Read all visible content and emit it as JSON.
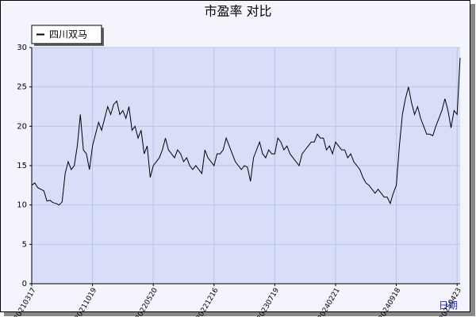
{
  "chart_data": {
    "type": "line",
    "title": "市盈率  对比",
    "x_label": "日期",
    "series": [
      {
        "name": "四川双马",
        "color": "#000000",
        "values": [
          12.5,
          12.8,
          12.2,
          12.0,
          11.8,
          10.5,
          10.6,
          10.3,
          10.2,
          10.0,
          10.4,
          14.0,
          15.5,
          14.5,
          15.0,
          17.5,
          21.5,
          17.0,
          16.5,
          14.5,
          17.5,
          19.0,
          20.5,
          19.5,
          21.0,
          22.5,
          21.5,
          22.8,
          23.2,
          21.5,
          22.0,
          21.0,
          22.5,
          19.5,
          20.0,
          18.5,
          19.5,
          16.5,
          17.5,
          13.5,
          15.0,
          15.5,
          16.0,
          17.0,
          18.5,
          17.0,
          16.5,
          16.0,
          17.0,
          16.5,
          15.5,
          16.0,
          15.0,
          14.5,
          15.0,
          14.5,
          14.0,
          17.0,
          16.0,
          15.5,
          15.0,
          16.5,
          16.5,
          17.0,
          18.5,
          17.5,
          16.5,
          15.5,
          15.0,
          14.5,
          15.0,
          14.8,
          13.0,
          16.0,
          17.0,
          18.0,
          16.5,
          16.0,
          17.0,
          16.5,
          16.5,
          18.5,
          18.0,
          17.0,
          17.5,
          16.5,
          16.0,
          15.5,
          15.0,
          16.5,
          17.0,
          17.5,
          18.0,
          18.0,
          19.0,
          18.5,
          18.5,
          17.0,
          17.5,
          16.5,
          18.0,
          17.5,
          17.0,
          17.0,
          16.0,
          16.5,
          15.5,
          15.0,
          14.5,
          13.5,
          12.8,
          12.5,
          12.0,
          11.5,
          12.0,
          11.5,
          11.0,
          11.0,
          10.2,
          11.5,
          12.5,
          17.5,
          21.5,
          23.5,
          25.0,
          23.0,
          21.5,
          22.5,
          21.0,
          20.0,
          19.0,
          19.0,
          18.8,
          20.0,
          21.0,
          22.0,
          23.5,
          22.0,
          19.8,
          22.0,
          21.5,
          28.7
        ]
      }
    ],
    "xlim": [
      0,
      141
    ],
    "xticks": [
      {
        "value": 0,
        "label": "20210317"
      },
      {
        "value": 20,
        "label": "20211019"
      },
      {
        "value": 40,
        "label": "20220520"
      },
      {
        "value": 60,
        "label": "20221216"
      },
      {
        "value": 80,
        "label": "20230719"
      },
      {
        "value": 100,
        "label": "20240221"
      },
      {
        "value": 120,
        "label": "20240918"
      },
      {
        "value": 140,
        "label": "20250423"
      }
    ],
    "ylim": [
      0,
      30
    ],
    "yticks": [
      0,
      5,
      10,
      15,
      20,
      25,
      30
    ],
    "grid": true,
    "legend": "top-left"
  }
}
